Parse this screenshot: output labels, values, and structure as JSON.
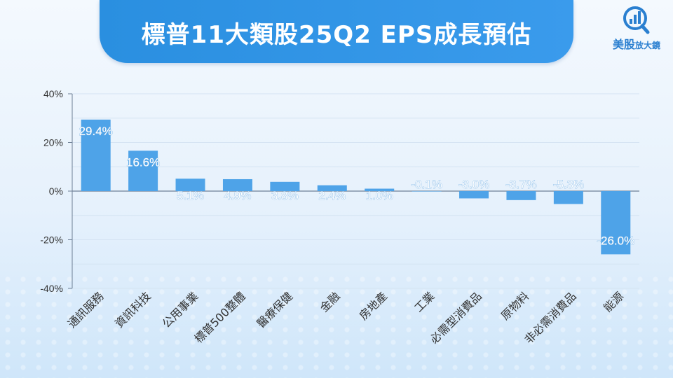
{
  "header": {
    "title": "標普11大類股25Q2 EPS成長預估"
  },
  "logo": {
    "name_main": "美股",
    "name_sub": "放大鏡",
    "icon": "magnifier-chart-icon",
    "color": "#2a7fd0"
  },
  "colors": {
    "banner": "#2a8fe0",
    "bar": "#4ea3e8",
    "label": "#ffffff",
    "axis_text": "#333333"
  },
  "chart_data": {
    "type": "bar",
    "categories": [
      "通訊服務",
      "資訊科技",
      "公用事業",
      "標普500整體",
      "醫療保健",
      "金融",
      "房地產",
      "工業",
      "必需型消費品",
      "原物料",
      "非必需消費品",
      "能源"
    ],
    "values": [
      29.4,
      16.6,
      5.1,
      4.9,
      3.8,
      2.4,
      1.0,
      -0.1,
      -3.0,
      -3.7,
      -5.3,
      -26.0
    ],
    "data_labels": [
      "29.4%",
      "16.6%",
      "5.1%",
      "4.9%",
      "3.8%",
      "2.4%",
      "1.0%",
      "-0.1%",
      "-3.0%",
      "-3.7%",
      "-5.3%",
      "-26.0%"
    ],
    "y_ticks": [
      40,
      20,
      0,
      -20,
      -40
    ],
    "y_tick_labels": [
      "40%",
      "20%",
      "0%",
      "-20%",
      "-40%"
    ],
    "ylim": [
      -40,
      40
    ],
    "title": "",
    "xlabel": "",
    "ylabel": "",
    "grid": true,
    "legend": "none"
  }
}
